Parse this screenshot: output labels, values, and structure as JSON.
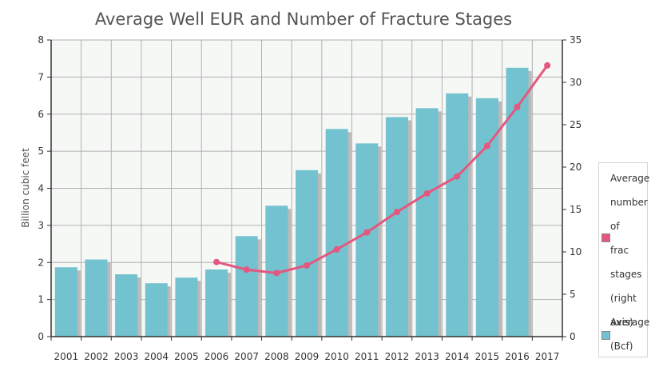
{
  "chart_data": {
    "type": "bar",
    "title": "Average Well EUR and Number of Fracture Stages",
    "xlabel": "",
    "ylabel": "Billion cubic feet",
    "y2label": "",
    "categories": [
      "2001",
      "2002",
      "2003",
      "2004",
      "2005",
      "2006",
      "2007",
      "2008",
      "2009",
      "2010",
      "2011",
      "2012",
      "2013",
      "2014",
      "2015",
      "2016",
      "2017"
    ],
    "ylim": [
      0,
      8
    ],
    "yticks": [
      0,
      1,
      2,
      3,
      4,
      5,
      6,
      7,
      8
    ],
    "y2lim": [
      0,
      35
    ],
    "y2ticks": [
      0,
      5,
      10,
      15,
      20,
      25,
      30,
      35
    ],
    "grid": true,
    "legend_position": "right",
    "series": [
      {
        "name": "Average (Bcf)",
        "type": "bar",
        "axis": "left",
        "color": "#72c2cf",
        "values": [
          1.87,
          2.08,
          1.68,
          1.44,
          1.59,
          1.81,
          2.71,
          3.53,
          4.49,
          5.6,
          5.21,
          5.92,
          6.16,
          6.56,
          6.43,
          7.25,
          null
        ]
      },
      {
        "name": "Average number of frac stages (right axis)",
        "type": "line",
        "axis": "right",
        "color": "#e4577f",
        "values": [
          null,
          null,
          null,
          null,
          null,
          8.8,
          7.9,
          7.5,
          8.4,
          10.3,
          12.3,
          14.7,
          16.9,
          18.9,
          22.5,
          27.1,
          32.0
        ]
      }
    ]
  },
  "legend": {
    "items": [
      {
        "label": "Average number of frac stages (right axis)",
        "color": "#e4577f"
      },
      {
        "label": "Average (Bcf)",
        "color": "#72c2cf"
      }
    ]
  }
}
